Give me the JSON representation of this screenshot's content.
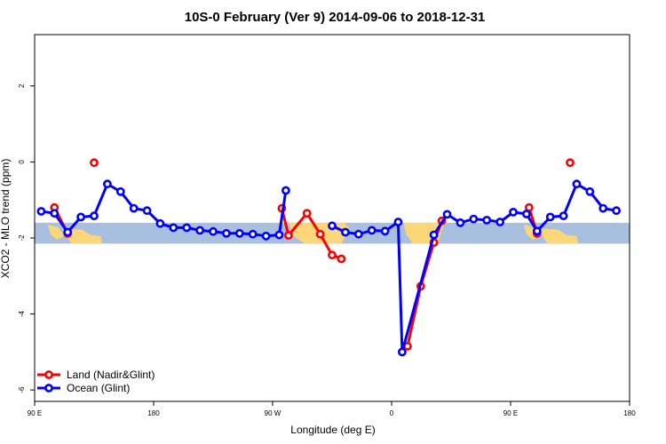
{
  "chart_data": {
    "type": "line",
    "title": "10S-0 February (Ver 9)   2014-09-06 to 2018-12-31",
    "xlabel": "Longitude (deg E)",
    "ylabel": "XCO2 - MLO trend (ppm)",
    "xlim": [
      90,
      540
    ],
    "ylim": [
      -6.3,
      3.35
    ],
    "x_ticks": [
      {
        "value": 90,
        "label": "90 E"
      },
      {
        "value": 180,
        "label": "180"
      },
      {
        "value": 270,
        "label": "90 W"
      },
      {
        "value": 360,
        "label": "0"
      },
      {
        "value": 450,
        "label": "90 E"
      },
      {
        "value": 540,
        "label": "180"
      }
    ],
    "y_ticks": [
      {
        "value": 2,
        "label": "2"
      },
      {
        "value": 0,
        "label": "0"
      },
      {
        "value": -2,
        "label": "-2"
      },
      {
        "value": -4,
        "label": "-4"
      },
      {
        "value": -6,
        "label": "-6"
      }
    ],
    "map_band": {
      "y_top": -1.6,
      "y_bottom": -2.15,
      "ocean_color": "#a9bfe0",
      "land_color": "#fbd77a"
    },
    "legend": {
      "position": "bottom-left"
    },
    "series": [
      {
        "name": "Land (Nadir&Glint)",
        "color": "#ff0000",
        "segments": [
          [
            [
              105,
              -1.2
            ],
            [
              115,
              -1.88
            ]
          ],
          [
            [
              135,
              -0.02
            ]
          ],
          [
            [
              277,
              -1.22
            ],
            [
              282,
              -1.93
            ],
            [
              296,
              -1.35
            ],
            [
              306,
              -1.9
            ],
            [
              315,
              -2.45
            ],
            [
              322,
              -2.55
            ]
          ],
          [
            [
              372,
              -4.85
            ],
            [
              382,
              -3.27
            ],
            [
              392,
              -2.12
            ],
            [
              398,
              -1.55
            ]
          ],
          [
            [
              464,
              -1.2
            ],
            [
              470,
              -1.88
            ]
          ],
          [
            [
              495,
              -0.02
            ]
          ]
        ]
      },
      {
        "name": "Ocean (Glint)",
        "color": "#0000ff",
        "segments": [
          [
            [
              95,
              -1.3
            ],
            [
              105,
              -1.35
            ],
            [
              115,
              -1.85
            ],
            [
              125,
              -1.45
            ],
            [
              135,
              -1.42
            ],
            [
              145,
              -0.58
            ],
            [
              155,
              -0.78
            ],
            [
              165,
              -1.22
            ],
            [
              175,
              -1.28
            ],
            [
              185,
              -1.62
            ],
            [
              195,
              -1.73
            ],
            [
              205,
              -1.73
            ],
            [
              215,
              -1.8
            ],
            [
              225,
              -1.83
            ],
            [
              235,
              -1.88
            ],
            [
              245,
              -1.88
            ],
            [
              255,
              -1.9
            ],
            [
              265,
              -1.95
            ],
            [
              275,
              -1.92
            ],
            [
              280,
              -0.75
            ]
          ],
          [
            [
              315,
              -1.68
            ],
            [
              325,
              -1.85
            ],
            [
              335,
              -1.9
            ],
            [
              345,
              -1.8
            ],
            [
              355,
              -1.82
            ],
            [
              365,
              -1.58
            ],
            [
              368,
              -5.0
            ],
            [
              392,
              -1.92
            ],
            [
              402,
              -1.38
            ],
            [
              412,
              -1.6
            ],
            [
              422,
              -1.5
            ],
            [
              432,
              -1.53
            ],
            [
              442,
              -1.58
            ],
            [
              452,
              -1.32
            ],
            [
              462,
              -1.37
            ],
            [
              470,
              -1.82
            ],
            [
              480,
              -1.45
            ],
            [
              490,
              -1.42
            ],
            [
              500,
              -0.58
            ],
            [
              510,
              -0.78
            ],
            [
              520,
              -1.22
            ],
            [
              530,
              -1.28
            ]
          ]
        ]
      }
    ]
  }
}
